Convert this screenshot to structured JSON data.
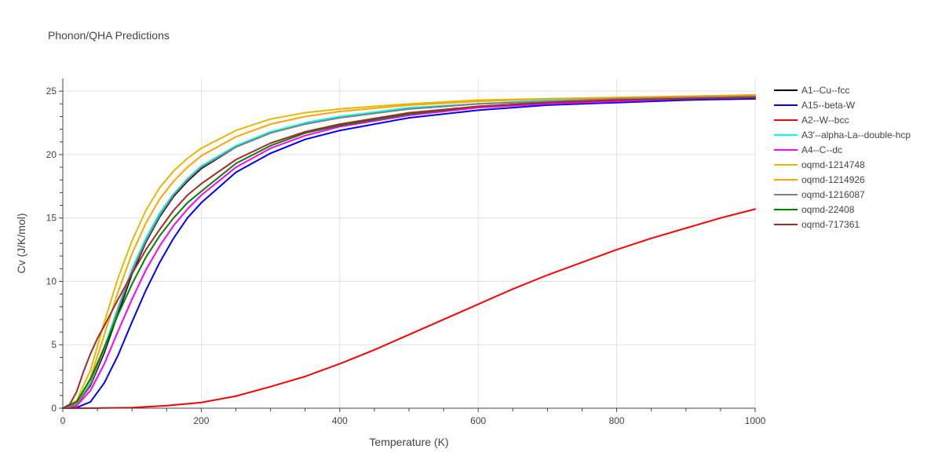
{
  "chart_data": {
    "type": "line",
    "title": "Phonon/QHA Predictions",
    "xlabel": "Temperature (K)",
    "ylabel": "Cv (J/K/mol)",
    "xlim": [
      0,
      1000
    ],
    "ylim": [
      0,
      26
    ],
    "xticks": [
      0,
      200,
      400,
      600,
      800,
      1000
    ],
    "yticks": [
      0,
      5,
      10,
      15,
      20,
      25
    ],
    "grid": true,
    "legend_position": "right",
    "series": [
      {
        "name": "A1--Cu--fcc",
        "color": "#000000",
        "x": [
          0,
          20,
          40,
          60,
          80,
          100,
          120,
          140,
          160,
          180,
          200,
          250,
          300,
          350,
          400,
          500,
          600,
          700,
          800,
          900,
          1000
        ],
        "y": [
          0,
          0.3,
          1.8,
          4.4,
          7.5,
          10.6,
          13.1,
          15.1,
          16.7,
          17.9,
          18.9,
          20.6,
          21.7,
          22.5,
          23.0,
          23.6,
          24.0,
          24.2,
          24.4,
          24.5,
          24.6
        ]
      },
      {
        "name": "A15--beta-W",
        "color": "#0000ff",
        "x": [
          0,
          20,
          40,
          60,
          80,
          100,
          120,
          140,
          160,
          180,
          200,
          250,
          300,
          350,
          400,
          500,
          600,
          700,
          800,
          900,
          1000
        ],
        "y": [
          0,
          0.05,
          0.5,
          2.0,
          4.2,
          6.8,
          9.3,
          11.5,
          13.4,
          15.0,
          16.2,
          18.6,
          20.1,
          21.2,
          21.9,
          22.9,
          23.5,
          23.9,
          24.1,
          24.3,
          24.4
        ]
      },
      {
        "name": "A2--W--bcc",
        "color": "#ff0000",
        "x": [
          0,
          50,
          100,
          150,
          200,
          250,
          300,
          350,
          400,
          450,
          500,
          550,
          600,
          650,
          700,
          750,
          800,
          850,
          900,
          950,
          1000
        ],
        "y": [
          0,
          0.01,
          0.05,
          0.2,
          0.45,
          0.95,
          1.7,
          2.5,
          3.5,
          4.6,
          5.8,
          7.0,
          8.2,
          9.4,
          10.5,
          11.5,
          12.5,
          13.4,
          14.2,
          15.0,
          15.7
        ]
      },
      {
        "name": "A3'--alpha-La--double-hcp",
        "color": "#00ffff",
        "x": [
          0,
          20,
          40,
          60,
          80,
          100,
          120,
          140,
          160,
          180,
          200,
          250,
          300,
          350,
          400,
          500,
          600,
          700,
          800,
          900,
          1000
        ],
        "y": [
          0,
          0.3,
          2.0,
          4.8,
          8.0,
          11.0,
          13.4,
          15.4,
          16.9,
          18.1,
          19.1,
          20.7,
          21.8,
          22.5,
          23.0,
          23.7,
          24.0,
          24.3,
          24.4,
          24.5,
          24.6
        ]
      },
      {
        "name": "A4--C--dc",
        "color": "#ff00ff",
        "x": [
          0,
          20,
          40,
          60,
          80,
          100,
          120,
          140,
          160,
          180,
          200,
          250,
          300,
          350,
          400,
          500,
          600,
          700,
          800,
          900,
          1000
        ],
        "y": [
          0,
          0.2,
          1.4,
          3.5,
          6.1,
          8.6,
          10.9,
          12.8,
          14.4,
          15.7,
          16.8,
          19.0,
          20.5,
          21.5,
          22.2,
          23.1,
          23.7,
          24.0,
          24.2,
          24.4,
          24.5
        ]
      },
      {
        "name": "oqmd-1214748",
        "color": "#e6b800",
        "x": [
          0,
          20,
          40,
          60,
          80,
          100,
          120,
          140,
          160,
          180,
          200,
          250,
          300,
          350,
          400,
          500,
          600,
          700,
          800,
          900,
          1000
        ],
        "y": [
          0,
          0.6,
          3.0,
          6.8,
          10.3,
          13.2,
          15.6,
          17.4,
          18.7,
          19.7,
          20.5,
          21.9,
          22.8,
          23.3,
          23.6,
          24.0,
          24.3,
          24.4,
          24.5,
          24.6,
          24.7
        ]
      },
      {
        "name": "oqmd-1214926",
        "color": "#ffa500",
        "x": [
          0,
          20,
          40,
          60,
          80,
          100,
          120,
          140,
          160,
          180,
          200,
          250,
          300,
          350,
          400,
          500,
          600,
          700,
          800,
          900,
          1000
        ],
        "y": [
          0,
          0.4,
          2.4,
          5.8,
          9.2,
          12.2,
          14.6,
          16.5,
          17.9,
          19.0,
          19.9,
          21.4,
          22.4,
          23.0,
          23.4,
          23.9,
          24.2,
          24.4,
          24.5,
          24.6,
          24.7
        ]
      },
      {
        "name": "oqmd-1216087",
        "color": "#808080",
        "x": [
          0,
          20,
          40,
          60,
          80,
          100,
          120,
          140,
          160,
          180,
          200,
          250,
          300,
          350,
          400,
          500,
          600,
          700,
          800,
          900,
          1000
        ],
        "y": [
          0,
          0.3,
          1.9,
          4.6,
          7.8,
          10.8,
          13.2,
          15.2,
          16.8,
          18.0,
          19.0,
          20.6,
          21.7,
          22.4,
          22.9,
          23.6,
          24.0,
          24.2,
          24.4,
          24.5,
          24.6
        ]
      },
      {
        "name": "oqmd-22408",
        "color": "#008000",
        "x": [
          0,
          20,
          40,
          60,
          80,
          100,
          120,
          140,
          160,
          180,
          200,
          250,
          300,
          350,
          400,
          500,
          600,
          700,
          800,
          900,
          1000
        ],
        "y": [
          0,
          0.5,
          2.3,
          4.8,
          7.4,
          9.8,
          11.9,
          13.6,
          15.0,
          16.2,
          17.1,
          19.3,
          20.7,
          21.7,
          22.3,
          23.2,
          23.8,
          24.1,
          24.3,
          24.4,
          24.5
        ]
      },
      {
        "name": "oqmd-717361",
        "color": "#a52a2a",
        "x": [
          0,
          10,
          20,
          30,
          40,
          50,
          60,
          80,
          100,
          120,
          140,
          160,
          180,
          200,
          250,
          300,
          350,
          400,
          500,
          600,
          700,
          800,
          900,
          1000
        ],
        "y": [
          0,
          0.3,
          1.3,
          2.9,
          4.3,
          5.5,
          6.5,
          8.6,
          10.6,
          12.5,
          14.1,
          15.6,
          16.8,
          17.7,
          19.6,
          20.9,
          21.8,
          22.4,
          23.3,
          23.8,
          24.1,
          24.3,
          24.4,
          24.5
        ]
      }
    ]
  }
}
